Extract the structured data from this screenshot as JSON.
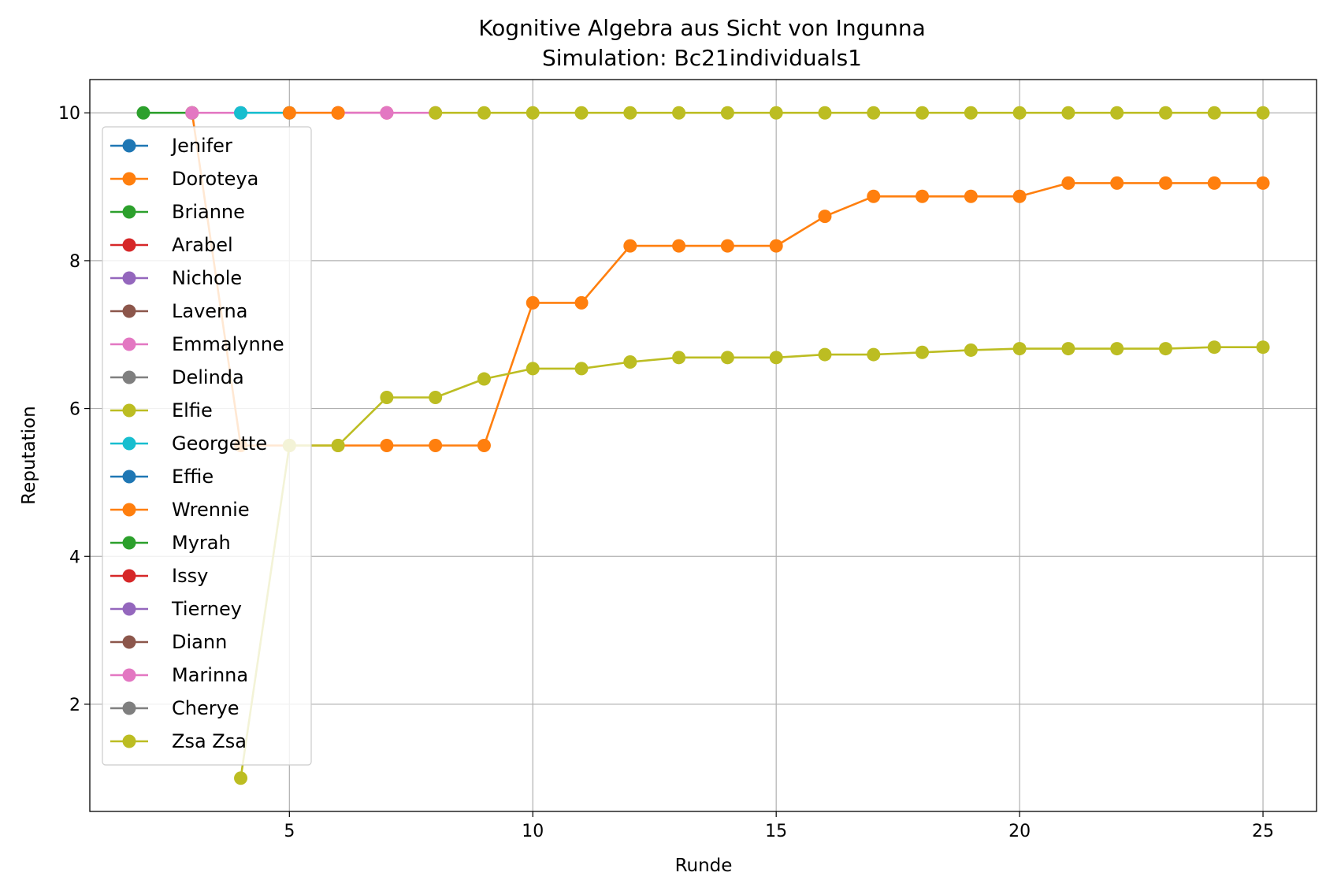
{
  "chart_data": {
    "type": "line",
    "title": "Kognitive Algebra aus Sicht von Ingunna",
    "subtitle": "Simulation: Bc21individuals1",
    "xlabel": "Runde",
    "ylabel": "Reputation",
    "xlim": [
      0.9,
      26.1
    ],
    "ylim": [
      0.55,
      10.45
    ],
    "xticks": [
      5,
      10,
      15,
      20,
      25
    ],
    "yticks": [
      2,
      4,
      6,
      8,
      10
    ],
    "grid": true,
    "legend_position": "upper-left",
    "series": [
      {
        "name": "Jenifer",
        "color": "#1f77b4",
        "points": []
      },
      {
        "name": "Doroteya",
        "color": "#ff7f0e",
        "points": [
          [
            3,
            10
          ],
          [
            4,
            5.5
          ],
          [
            5,
            5.5
          ],
          [
            6,
            5.5
          ],
          [
            7,
            5.5
          ],
          [
            8,
            5.5
          ],
          [
            9,
            5.5
          ],
          [
            10,
            7.43
          ],
          [
            11,
            7.43
          ],
          [
            12,
            8.2
          ],
          [
            13,
            8.2
          ],
          [
            14,
            8.2
          ],
          [
            15,
            8.2
          ],
          [
            16,
            8.6
          ],
          [
            17,
            8.87
          ],
          [
            18,
            8.87
          ],
          [
            19,
            8.87
          ],
          [
            20,
            8.87
          ],
          [
            21,
            9.05
          ],
          [
            22,
            9.05
          ],
          [
            23,
            9.05
          ],
          [
            24,
            9.05
          ],
          [
            25,
            9.05
          ]
        ]
      },
      {
        "name": "Brianne",
        "color": "#2ca02c",
        "points": [
          [
            2,
            10
          ],
          [
            3,
            10
          ]
        ]
      },
      {
        "name": "Arabel",
        "color": "#d62728",
        "points": [
          [
            6,
            10
          ],
          [
            7,
            10
          ]
        ]
      },
      {
        "name": "Nichole",
        "color": "#9467bd",
        "points": []
      },
      {
        "name": "Laverna",
        "color": "#8c564b",
        "points": []
      },
      {
        "name": "Emmalynne",
        "color": "#e377c2",
        "points": [
          [
            3,
            10
          ],
          [
            4,
            10
          ],
          [
            7,
            10
          ],
          [
            8,
            10
          ]
        ]
      },
      {
        "name": "Delinda",
        "color": "#7f7f7f",
        "points": []
      },
      {
        "name": "Elfie",
        "color": "#bcbd22",
        "points": [
          [
            8,
            10
          ],
          [
            9,
            10
          ],
          [
            10,
            10
          ],
          [
            11,
            10
          ],
          [
            12,
            10
          ],
          [
            13,
            10
          ],
          [
            14,
            10
          ],
          [
            15,
            10
          ],
          [
            16,
            10
          ],
          [
            17,
            10
          ],
          [
            18,
            10
          ],
          [
            19,
            10
          ],
          [
            20,
            10
          ],
          [
            21,
            10
          ],
          [
            22,
            10
          ],
          [
            23,
            10
          ],
          [
            24,
            10
          ],
          [
            25,
            10
          ]
        ]
      },
      {
        "name": "Georgette",
        "color": "#17becf",
        "points": [
          [
            4,
            10
          ],
          [
            5,
            10
          ]
        ]
      },
      {
        "name": "Effie",
        "color": "#1f77b4",
        "points": []
      },
      {
        "name": "Wrennie",
        "color": "#ff7f0e",
        "points": [
          [
            5,
            10
          ],
          [
            6,
            10
          ]
        ]
      },
      {
        "name": "Myrah",
        "color": "#2ca02c",
        "points": []
      },
      {
        "name": "Issy",
        "color": "#d62728",
        "points": []
      },
      {
        "name": "Tierney",
        "color": "#9467bd",
        "points": []
      },
      {
        "name": "Diann",
        "color": "#8c564b",
        "points": []
      },
      {
        "name": "Marinna",
        "color": "#e377c2",
        "points": []
      },
      {
        "name": "Cherye",
        "color": "#7f7f7f",
        "points": []
      },
      {
        "name": "Zsa Zsa",
        "color": "#bcbd22",
        "points": [
          [
            4,
            1
          ],
          [
            5,
            5.5
          ],
          [
            6,
            5.5
          ],
          [
            7,
            6.15
          ],
          [
            8,
            6.15
          ],
          [
            9,
            6.4
          ],
          [
            10,
            6.54
          ],
          [
            11,
            6.54
          ],
          [
            12,
            6.63
          ],
          [
            13,
            6.69
          ],
          [
            14,
            6.69
          ],
          [
            15,
            6.69
          ],
          [
            16,
            6.73
          ],
          [
            17,
            6.73
          ],
          [
            18,
            6.76
          ],
          [
            19,
            6.79
          ],
          [
            20,
            6.81
          ],
          [
            21,
            6.81
          ],
          [
            22,
            6.81
          ],
          [
            23,
            6.81
          ],
          [
            24,
            6.83
          ],
          [
            25,
            6.83
          ]
        ]
      }
    ]
  }
}
